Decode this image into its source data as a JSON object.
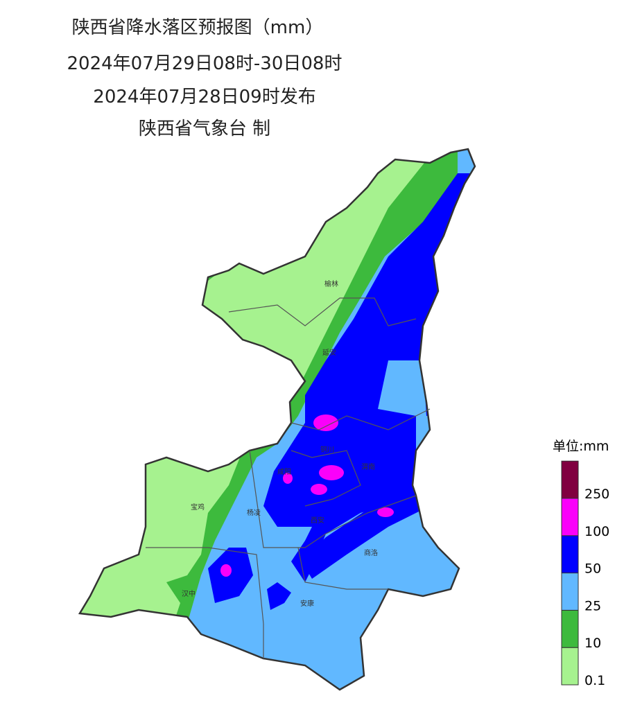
{
  "header": {
    "title": "陕西省降水落区预报图（mm）",
    "period": "2024年07月29日08时-30日08时",
    "issued": "2024年07月28日09时发布",
    "publisher": "陕西省气象台 制"
  },
  "cities": [
    {
      "label": "榆林"
    },
    {
      "label": "延安"
    },
    {
      "label": "铜川"
    },
    {
      "label": "渭南"
    },
    {
      "label": "咸阳"
    },
    {
      "label": "宝鸡"
    },
    {
      "label": "杨凌"
    },
    {
      "label": "西安"
    },
    {
      "label": "商洛"
    },
    {
      "label": "汉中"
    },
    {
      "label": "安康"
    }
  ],
  "legend": {
    "title": "单位:mm",
    "levels": [
      {
        "label": "0.1",
        "color": "#a6f28f"
      },
      {
        "label": "10",
        "color": "#3dba3d"
      },
      {
        "label": "25",
        "color": "#61b8ff"
      },
      {
        "label": "50",
        "color": "#0000ff"
      },
      {
        "label": "100",
        "color": "#fa00fa"
      },
      {
        "label": "250",
        "color": "#800040"
      }
    ]
  }
}
